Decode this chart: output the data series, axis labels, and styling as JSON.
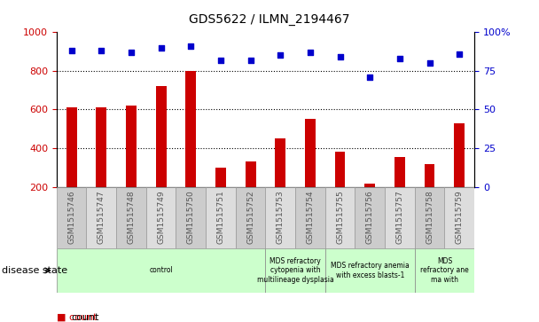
{
  "title": "GDS5622 / ILMN_2194467",
  "samples": [
    "GSM1515746",
    "GSM1515747",
    "GSM1515748",
    "GSM1515749",
    "GSM1515750",
    "GSM1515751",
    "GSM1515752",
    "GSM1515753",
    "GSM1515754",
    "GSM1515755",
    "GSM1515756",
    "GSM1515757",
    "GSM1515758",
    "GSM1515759"
  ],
  "counts": [
    610,
    612,
    622,
    723,
    800,
    300,
    330,
    452,
    552,
    382,
    215,
    352,
    318,
    527
  ],
  "percentiles": [
    88,
    88,
    87,
    90,
    91,
    82,
    82,
    85,
    87,
    84,
    71,
    83,
    80,
    86
  ],
  "bar_color": "#cc0000",
  "dot_color": "#0000cc",
  "ylim_left": [
    200,
    1000
  ],
  "ylim_right": [
    0,
    100
  ],
  "yticks_left": [
    200,
    400,
    600,
    800,
    1000
  ],
  "yticks_right": [
    0,
    25,
    50,
    75,
    100
  ],
  "grid_values": [
    400,
    600,
    800
  ],
  "disease_groups": [
    {
      "label": "control",
      "start": 0,
      "end": 7
    },
    {
      "label": "MDS refractory\ncytopenia with\nmultilineage dysplasia",
      "start": 7,
      "end": 9
    },
    {
      "label": "MDS refractory anemia\nwith excess blasts-1",
      "start": 9,
      "end": 12
    },
    {
      "label": "MDS\nrefractory ane\nma with",
      "start": 12,
      "end": 14
    }
  ],
  "green_color": "#ccffcc",
  "gray_even": "#cccccc",
  "gray_odd": "#dddddd",
  "tick_label_color": "#555555",
  "xlabel_disease": "disease state"
}
